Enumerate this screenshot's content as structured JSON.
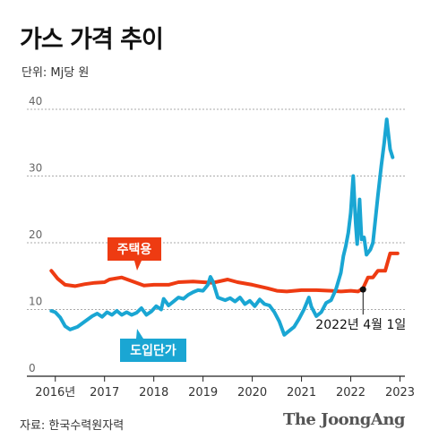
{
  "title": "가스 가격 추이",
  "unit_label": "단위: Mj당 원",
  "source": "자료: 한국수력원자력",
  "brand": "The JoongAng",
  "chart_data": {
    "type": "line",
    "title": "가스 가격 추이",
    "ylabel": "단위: Mj당 원",
    "ylim": [
      0,
      40
    ],
    "yticks": [
      0,
      10,
      20,
      30,
      40
    ],
    "xlim": [
      2015.75,
      2023.1
    ],
    "xticks": [
      {
        "value": 2016,
        "label": "2016년"
      },
      {
        "value": 2017,
        "label": "2017"
      },
      {
        "value": 2018,
        "label": "2018"
      },
      {
        "value": 2019,
        "label": "2019"
      },
      {
        "value": 2020,
        "label": "2020"
      },
      {
        "value": 2021,
        "label": "2021"
      },
      {
        "value": 2022,
        "label": "2022"
      },
      {
        "value": 2023,
        "label": "2023"
      }
    ],
    "grid": true,
    "series": [
      {
        "name": "주택용",
        "color": "#ee3b12",
        "points": [
          [
            2015.92,
            15.8
          ],
          [
            2016.05,
            14.6
          ],
          [
            2016.2,
            13.7
          ],
          [
            2016.4,
            13.5
          ],
          [
            2016.6,
            13.8
          ],
          [
            2016.8,
            14.0
          ],
          [
            2017.0,
            14.1
          ],
          [
            2017.1,
            14.5
          ],
          [
            2017.35,
            14.8
          ],
          [
            2017.5,
            14.4
          ],
          [
            2017.8,
            13.6
          ],
          [
            2018.0,
            13.7
          ],
          [
            2018.3,
            13.7
          ],
          [
            2018.5,
            14.1
          ],
          [
            2018.8,
            14.2
          ],
          [
            2019.0,
            14.1
          ],
          [
            2019.2,
            14.0
          ],
          [
            2019.5,
            14.5
          ],
          [
            2019.7,
            14.1
          ],
          [
            2020.0,
            13.7
          ],
          [
            2020.3,
            13.2
          ],
          [
            2020.5,
            12.8
          ],
          [
            2020.7,
            12.7
          ],
          [
            2021.0,
            12.9
          ],
          [
            2021.3,
            12.9
          ],
          [
            2021.6,
            12.8
          ],
          [
            2021.8,
            12.7
          ],
          [
            2022.0,
            12.8
          ],
          [
            2022.15,
            12.7
          ],
          [
            2022.25,
            13.2
          ],
          [
            2022.35,
            14.8
          ],
          [
            2022.45,
            14.8
          ],
          [
            2022.55,
            15.8
          ],
          [
            2022.7,
            15.8
          ],
          [
            2022.8,
            18.4
          ],
          [
            2022.95,
            18.4
          ]
        ]
      },
      {
        "name": "도입단가",
        "color": "#1aa6d3",
        "points": [
          [
            2015.92,
            9.8
          ],
          [
            2016.0,
            9.6
          ],
          [
            2016.1,
            8.8
          ],
          [
            2016.2,
            7.5
          ],
          [
            2016.3,
            7.0
          ],
          [
            2016.45,
            7.4
          ],
          [
            2016.6,
            8.2
          ],
          [
            2016.75,
            9.0
          ],
          [
            2016.85,
            9.4
          ],
          [
            2016.95,
            8.9
          ],
          [
            2017.05,
            9.6
          ],
          [
            2017.15,
            9.2
          ],
          [
            2017.25,
            9.8
          ],
          [
            2017.35,
            9.2
          ],
          [
            2017.45,
            9.6
          ],
          [
            2017.55,
            9.2
          ],
          [
            2017.65,
            9.5
          ],
          [
            2017.75,
            10.2
          ],
          [
            2017.85,
            9.2
          ],
          [
            2017.95,
            9.7
          ],
          [
            2018.05,
            10.5
          ],
          [
            2018.15,
            10.0
          ],
          [
            2018.2,
            11.6
          ],
          [
            2018.3,
            10.6
          ],
          [
            2018.4,
            11.2
          ],
          [
            2018.5,
            11.8
          ],
          [
            2018.6,
            11.6
          ],
          [
            2018.7,
            12.2
          ],
          [
            2018.8,
            12.6
          ],
          [
            2018.9,
            12.9
          ],
          [
            2019.0,
            12.8
          ],
          [
            2019.1,
            13.7
          ],
          [
            2019.15,
            14.9
          ],
          [
            2019.2,
            14.2
          ],
          [
            2019.3,
            11.8
          ],
          [
            2019.45,
            11.4
          ],
          [
            2019.55,
            11.7
          ],
          [
            2019.65,
            11.2
          ],
          [
            2019.75,
            11.8
          ],
          [
            2019.85,
            10.8
          ],
          [
            2019.95,
            11.3
          ],
          [
            2020.05,
            10.5
          ],
          [
            2020.15,
            11.5
          ],
          [
            2020.25,
            10.8
          ],
          [
            2020.35,
            10.6
          ],
          [
            2020.45,
            9.6
          ],
          [
            2020.55,
            8.2
          ],
          [
            2020.65,
            6.2
          ],
          [
            2020.75,
            6.8
          ],
          [
            2020.85,
            7.4
          ],
          [
            2020.95,
            8.6
          ],
          [
            2021.05,
            10.0
          ],
          [
            2021.15,
            11.8
          ],
          [
            2021.2,
            10.4
          ],
          [
            2021.3,
            9.0
          ],
          [
            2021.4,
            9.6
          ],
          [
            2021.5,
            11.0
          ],
          [
            2021.6,
            11.4
          ],
          [
            2021.7,
            13.0
          ],
          [
            2021.8,
            15.5
          ],
          [
            2021.85,
            18.0
          ],
          [
            2021.9,
            19.5
          ],
          [
            2021.95,
            21.5
          ],
          [
            2022.0,
            24.5
          ],
          [
            2022.05,
            30.0
          ],
          [
            2022.1,
            23.0
          ],
          [
            2022.13,
            19.8
          ],
          [
            2022.18,
            26.5
          ],
          [
            2022.22,
            20.5
          ],
          [
            2022.27,
            20.8
          ],
          [
            2022.32,
            18.2
          ],
          [
            2022.4,
            19.0
          ],
          [
            2022.45,
            20.0
          ],
          [
            2022.55,
            27.0
          ],
          [
            2022.62,
            31.5
          ],
          [
            2022.68,
            35.0
          ],
          [
            2022.73,
            38.5
          ],
          [
            2022.8,
            34.0
          ],
          [
            2022.85,
            32.8
          ]
        ]
      }
    ],
    "series_labels": [
      {
        "series": "주택용",
        "text": "주택용"
      },
      {
        "series": "도입단가",
        "text": "도입단가"
      }
    ],
    "annotation": {
      "text": "2022년 4월 1일",
      "x": 2022.25,
      "y": 13.0
    }
  }
}
